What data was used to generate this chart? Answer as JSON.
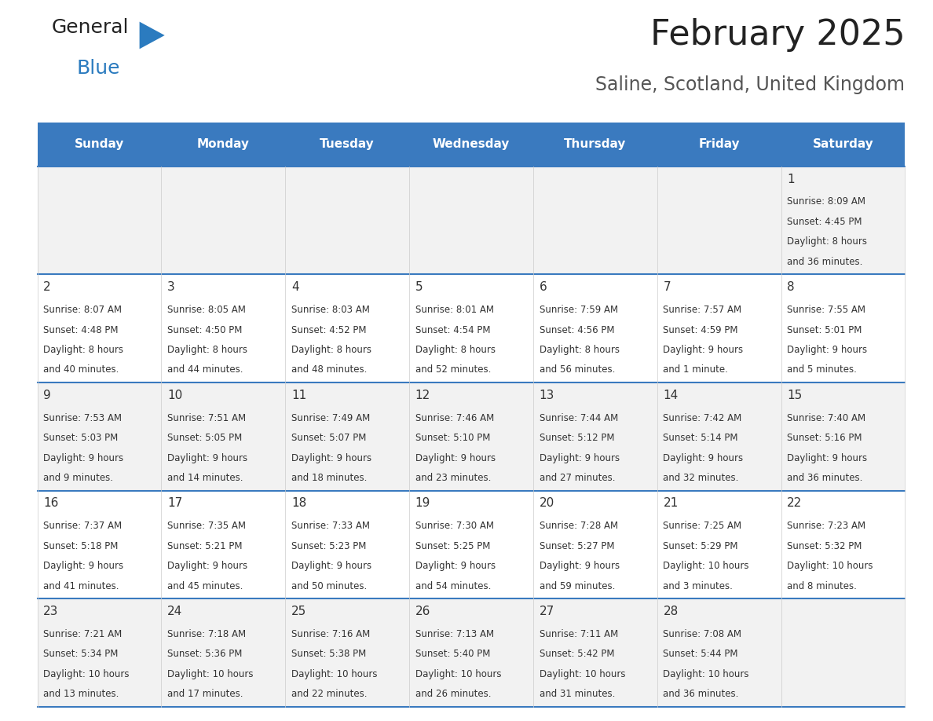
{
  "title": "February 2025",
  "subtitle": "Saline, Scotland, United Kingdom",
  "header_bg": "#3a7abf",
  "header_text_color": "#ffffff",
  "row_bg_odd": "#f2f2f2",
  "row_bg_even": "#ffffff",
  "separator_color": "#3a7abf",
  "day_headers": [
    "Sunday",
    "Monday",
    "Tuesday",
    "Wednesday",
    "Thursday",
    "Friday",
    "Saturday"
  ],
  "days": [
    {
      "day": 1,
      "col": 6,
      "row": 0,
      "sunrise": "8:09 AM",
      "sunset": "4:45 PM",
      "daylight": "8 hours and 36 minutes."
    },
    {
      "day": 2,
      "col": 0,
      "row": 1,
      "sunrise": "8:07 AM",
      "sunset": "4:48 PM",
      "daylight": "8 hours and 40 minutes."
    },
    {
      "day": 3,
      "col": 1,
      "row": 1,
      "sunrise": "8:05 AM",
      "sunset": "4:50 PM",
      "daylight": "8 hours and 44 minutes."
    },
    {
      "day": 4,
      "col": 2,
      "row": 1,
      "sunrise": "8:03 AM",
      "sunset": "4:52 PM",
      "daylight": "8 hours and 48 minutes."
    },
    {
      "day": 5,
      "col": 3,
      "row": 1,
      "sunrise": "8:01 AM",
      "sunset": "4:54 PM",
      "daylight": "8 hours and 52 minutes."
    },
    {
      "day": 6,
      "col": 4,
      "row": 1,
      "sunrise": "7:59 AM",
      "sunset": "4:56 PM",
      "daylight": "8 hours and 56 minutes."
    },
    {
      "day": 7,
      "col": 5,
      "row": 1,
      "sunrise": "7:57 AM",
      "sunset": "4:59 PM",
      "daylight": "9 hours and 1 minute."
    },
    {
      "day": 8,
      "col": 6,
      "row": 1,
      "sunrise": "7:55 AM",
      "sunset": "5:01 PM",
      "daylight": "9 hours and 5 minutes."
    },
    {
      "day": 9,
      "col": 0,
      "row": 2,
      "sunrise": "7:53 AM",
      "sunset": "5:03 PM",
      "daylight": "9 hours and 9 minutes."
    },
    {
      "day": 10,
      "col": 1,
      "row": 2,
      "sunrise": "7:51 AM",
      "sunset": "5:05 PM",
      "daylight": "9 hours and 14 minutes."
    },
    {
      "day": 11,
      "col": 2,
      "row": 2,
      "sunrise": "7:49 AM",
      "sunset": "5:07 PM",
      "daylight": "9 hours and 18 minutes."
    },
    {
      "day": 12,
      "col": 3,
      "row": 2,
      "sunrise": "7:46 AM",
      "sunset": "5:10 PM",
      "daylight": "9 hours and 23 minutes."
    },
    {
      "day": 13,
      "col": 4,
      "row": 2,
      "sunrise": "7:44 AM",
      "sunset": "5:12 PM",
      "daylight": "9 hours and 27 minutes."
    },
    {
      "day": 14,
      "col": 5,
      "row": 2,
      "sunrise": "7:42 AM",
      "sunset": "5:14 PM",
      "daylight": "9 hours and 32 minutes."
    },
    {
      "day": 15,
      "col": 6,
      "row": 2,
      "sunrise": "7:40 AM",
      "sunset": "5:16 PM",
      "daylight": "9 hours and 36 minutes."
    },
    {
      "day": 16,
      "col": 0,
      "row": 3,
      "sunrise": "7:37 AM",
      "sunset": "5:18 PM",
      "daylight": "9 hours and 41 minutes."
    },
    {
      "day": 17,
      "col": 1,
      "row": 3,
      "sunrise": "7:35 AM",
      "sunset": "5:21 PM",
      "daylight": "9 hours and 45 minutes."
    },
    {
      "day": 18,
      "col": 2,
      "row": 3,
      "sunrise": "7:33 AM",
      "sunset": "5:23 PM",
      "daylight": "9 hours and 50 minutes."
    },
    {
      "day": 19,
      "col": 3,
      "row": 3,
      "sunrise": "7:30 AM",
      "sunset": "5:25 PM",
      "daylight": "9 hours and 54 minutes."
    },
    {
      "day": 20,
      "col": 4,
      "row": 3,
      "sunrise": "7:28 AM",
      "sunset": "5:27 PM",
      "daylight": "9 hours and 59 minutes."
    },
    {
      "day": 21,
      "col": 5,
      "row": 3,
      "sunrise": "7:25 AM",
      "sunset": "5:29 PM",
      "daylight": "10 hours and 3 minutes."
    },
    {
      "day": 22,
      "col": 6,
      "row": 3,
      "sunrise": "7:23 AM",
      "sunset": "5:32 PM",
      "daylight": "10 hours and 8 minutes."
    },
    {
      "day": 23,
      "col": 0,
      "row": 4,
      "sunrise": "7:21 AM",
      "sunset": "5:34 PM",
      "daylight": "10 hours and 13 minutes."
    },
    {
      "day": 24,
      "col": 1,
      "row": 4,
      "sunrise": "7:18 AM",
      "sunset": "5:36 PM",
      "daylight": "10 hours and 17 minutes."
    },
    {
      "day": 25,
      "col": 2,
      "row": 4,
      "sunrise": "7:16 AM",
      "sunset": "5:38 PM",
      "daylight": "10 hours and 22 minutes."
    },
    {
      "day": 26,
      "col": 3,
      "row": 4,
      "sunrise": "7:13 AM",
      "sunset": "5:40 PM",
      "daylight": "10 hours and 26 minutes."
    },
    {
      "day": 27,
      "col": 4,
      "row": 4,
      "sunrise": "7:11 AM",
      "sunset": "5:42 PM",
      "daylight": "10 hours and 31 minutes."
    },
    {
      "day": 28,
      "col": 5,
      "row": 4,
      "sunrise": "7:08 AM",
      "sunset": "5:44 PM",
      "daylight": "10 hours and 36 minutes."
    }
  ],
  "logo_color1": "#222222",
  "logo_color2": "#2b7bbf",
  "logo_triangle_color": "#2b7bbf"
}
